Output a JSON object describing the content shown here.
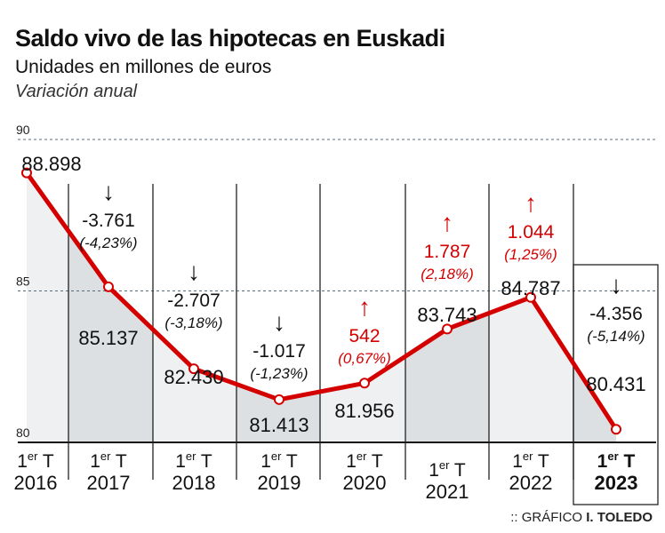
{
  "chart_data": {
    "type": "line",
    "title": "Saldo vivo de las hipotecas en Euskadi",
    "subtitle": "Unidades en millones de euros",
    "note": "Variación anual",
    "ylim": [
      80,
      90
    ],
    "yticks": [
      "80",
      "85",
      "90"
    ],
    "grid": true,
    "categories": [
      [
        "1er T",
        "2016"
      ],
      [
        "1er T",
        "2017"
      ],
      [
        "1er T",
        "2018"
      ],
      [
        "1er T",
        "2019"
      ],
      [
        "1er T",
        "2020"
      ],
      [
        "1er T",
        "2021"
      ],
      [
        "1er T",
        "2022"
      ],
      [
        "1er T",
        "2023"
      ]
    ],
    "values": [
      88.898,
      85.137,
      82.43,
      81.413,
      81.956,
      83.743,
      84.787,
      80.431
    ],
    "value_labels": [
      "88.898",
      "85.137",
      "82.430",
      "81.413",
      "81.956",
      "83.743",
      "84.787",
      "80.431"
    ],
    "changes": [
      {
        "value": "-3.761",
        "pct": "(-4,23%)",
        "dir": "down"
      },
      {
        "value": "-2.707",
        "pct": "(-3,18%)",
        "dir": "down"
      },
      {
        "value": "-1.017",
        "pct": "(-1,23%)",
        "dir": "down"
      },
      {
        "value": "542",
        "pct": "(0,67%)",
        "dir": "up"
      },
      {
        "value": "1.787",
        "pct": "(2,18%)",
        "dir": "up"
      },
      {
        "value": "1.044",
        "pct": "(1,25%)",
        "dir": "up"
      },
      {
        "value": "-4.356",
        "pct": "(-5,14%)",
        "dir": "down"
      }
    ],
    "colors": {
      "line": "#d40000",
      "up": "#d40000",
      "down": "#111111",
      "fill_light": "#eef0f1",
      "fill_dark": "#dde0e3"
    }
  },
  "credit": {
    "prefix": ":: GRÁFICO",
    "author": "I. TOLEDO"
  }
}
